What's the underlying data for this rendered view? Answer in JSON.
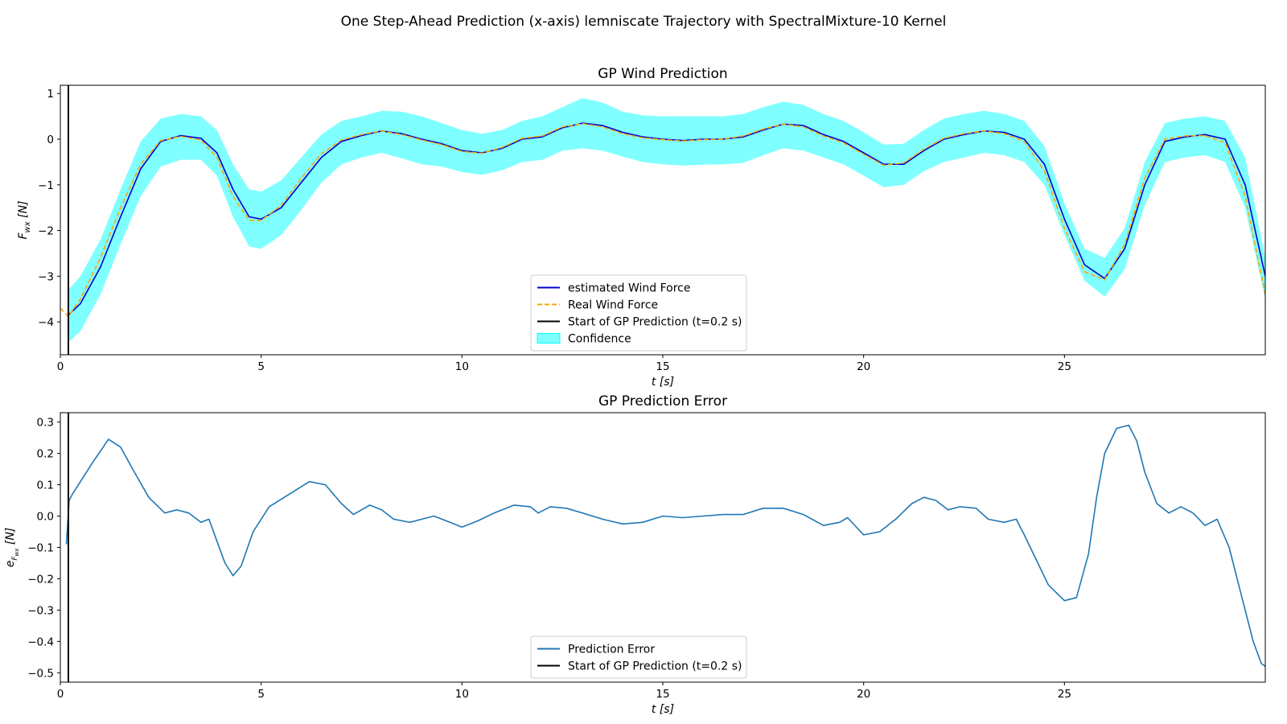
{
  "figure": {
    "suptitle": "One Step-Ahead Prediction (x-axis) lemniscate Trajectory with SpectralMixture-10 Kernel"
  },
  "chart_data": [
    {
      "type": "line",
      "title": "GP Wind Prediction",
      "xlabel": "t [s]",
      "ylabel": "F_wx [N]",
      "xlim": [
        0,
        30
      ],
      "ylim": [
        -4.72,
        1.18
      ],
      "xticks": [
        0,
        5,
        10,
        15,
        20,
        25
      ],
      "yticks": [
        1,
        0,
        -1,
        -2,
        -3,
        -4
      ],
      "grid": false,
      "legend_position": "lower center",
      "vline": {
        "x": 0.2,
        "label": "Start of GP Prediction (t=0.2 s)",
        "color": "#000000"
      },
      "series": [
        {
          "name": "estimated Wind Force",
          "style": "solid",
          "color": "#0000cc",
          "x": [
            0.2,
            0.5,
            1,
            1.5,
            2,
            2.5,
            3,
            3.5,
            3.9,
            4.3,
            4.7,
            5,
            5.5,
            6,
            6.5,
            7,
            7.5,
            8,
            8.5,
            9,
            9.5,
            10,
            10.5,
            11,
            11.5,
            12,
            12.5,
            13,
            13.5,
            14,
            14.5,
            15,
            15.5,
            16,
            16.5,
            17,
            17.5,
            18,
            18.5,
            19,
            19.5,
            20,
            20.5,
            21,
            21.5,
            22,
            22.5,
            23,
            23.5,
            24,
            24.5,
            25,
            25.5,
            26,
            26.5,
            27,
            27.5,
            28,
            28.5,
            29,
            29.5,
            30
          ],
          "y": [
            -3.85,
            -3.6,
            -2.8,
            -1.7,
            -0.65,
            -0.05,
            0.08,
            0.02,
            -0.3,
            -1.1,
            -1.7,
            -1.75,
            -1.5,
            -0.95,
            -0.4,
            -0.05,
            0.08,
            0.18,
            0.12,
            0.0,
            -0.1,
            -0.25,
            -0.3,
            -0.2,
            0.0,
            0.05,
            0.25,
            0.35,
            0.3,
            0.15,
            0.05,
            0.0,
            -0.03,
            0.0,
            0.0,
            0.05,
            0.2,
            0.33,
            0.3,
            0.1,
            -0.05,
            -0.3,
            -0.55,
            -0.55,
            -0.25,
            0.0,
            0.1,
            0.18,
            0.15,
            0.0,
            -0.55,
            -1.75,
            -2.75,
            -3.05,
            -2.4,
            -1.0,
            -0.05,
            0.05,
            0.1,
            0.0,
            -1.0,
            -3.0
          ]
        },
        {
          "name": "Real Wind Force",
          "style": "dashed",
          "color": "#ffa500",
          "x": [
            0,
            0.2,
            0.5,
            1,
            1.5,
            2,
            2.5,
            3,
            3.5,
            3.9,
            4.3,
            4.7,
            5,
            5.5,
            6,
            6.5,
            7,
            7.5,
            8,
            8.5,
            9,
            9.5,
            10,
            10.5,
            11,
            11.5,
            12,
            12.5,
            13,
            13.5,
            14,
            14.5,
            15,
            15.5,
            16,
            16.5,
            17,
            17.5,
            18,
            18.5,
            19,
            19.5,
            20,
            20.5,
            21,
            21.5,
            22,
            22.5,
            23,
            23.5,
            24,
            24.5,
            25,
            25.5,
            26,
            26.5,
            27,
            27.5,
            28,
            28.5,
            29,
            29.5,
            30
          ],
          "y": [
            -3.7,
            -3.88,
            -3.5,
            -2.6,
            -1.5,
            -0.55,
            -0.03,
            0.06,
            -0.02,
            -0.4,
            -1.25,
            -1.78,
            -1.78,
            -1.45,
            -0.85,
            -0.32,
            -0.02,
            0.1,
            0.18,
            0.1,
            -0.02,
            -0.12,
            -0.27,
            -0.31,
            -0.18,
            0.02,
            0.07,
            0.27,
            0.34,
            0.27,
            0.12,
            0.03,
            -0.01,
            -0.04,
            -0.01,
            0.0,
            0.07,
            0.22,
            0.33,
            0.27,
            0.07,
            -0.08,
            -0.33,
            -0.57,
            -0.52,
            -0.22,
            0.02,
            0.12,
            0.18,
            0.12,
            -0.05,
            -0.7,
            -1.95,
            -2.9,
            -3.08,
            -2.3,
            -0.85,
            0.0,
            0.07,
            0.08,
            -0.08,
            -1.25,
            -3.4
          ]
        }
      ],
      "confidence": {
        "name": "Confidence",
        "color": "#00ffff",
        "x": [
          0.2,
          0.5,
          1,
          1.5,
          2,
          2.5,
          3,
          3.5,
          3.9,
          4.3,
          4.7,
          5,
          5.5,
          6,
          6.5,
          7,
          7.5,
          8,
          8.5,
          9,
          9.5,
          10,
          10.5,
          11,
          11.5,
          12,
          12.5,
          13,
          13.5,
          14,
          14.5,
          15,
          15.5,
          16,
          16.5,
          17,
          17.5,
          18,
          18.5,
          19,
          19.5,
          20,
          20.5,
          21,
          21.5,
          22,
          22.5,
          23,
          23.5,
          24,
          24.5,
          25,
          25.5,
          26,
          26.5,
          27,
          27.5,
          28,
          28.5,
          29,
          29.5,
          30
        ],
        "upper": [
          -3.3,
          -3.0,
          -2.2,
          -1.1,
          -0.05,
          0.45,
          0.55,
          0.5,
          0.2,
          -0.55,
          -1.1,
          -1.15,
          -0.9,
          -0.4,
          0.1,
          0.4,
          0.5,
          0.62,
          0.6,
          0.5,
          0.35,
          0.2,
          0.12,
          0.2,
          0.4,
          0.5,
          0.7,
          0.9,
          0.8,
          0.6,
          0.52,
          0.5,
          0.5,
          0.5,
          0.5,
          0.55,
          0.7,
          0.82,
          0.75,
          0.55,
          0.4,
          0.15,
          -0.12,
          -0.1,
          0.2,
          0.45,
          0.55,
          0.62,
          0.55,
          0.4,
          -0.15,
          -1.4,
          -2.4,
          -2.6,
          -1.95,
          -0.5,
          0.35,
          0.45,
          0.5,
          0.4,
          -0.4,
          -2.6
        ],
        "lower": [
          -4.45,
          -4.2,
          -3.4,
          -2.3,
          -1.25,
          -0.6,
          -0.45,
          -0.45,
          -0.8,
          -1.7,
          -2.35,
          -2.4,
          -2.1,
          -1.55,
          -0.95,
          -0.55,
          -0.4,
          -0.3,
          -0.42,
          -0.55,
          -0.6,
          -0.72,
          -0.78,
          -0.68,
          -0.5,
          -0.45,
          -0.25,
          -0.2,
          -0.25,
          -0.38,
          -0.5,
          -0.55,
          -0.58,
          -0.56,
          -0.55,
          -0.52,
          -0.35,
          -0.2,
          -0.25,
          -0.4,
          -0.55,
          -0.8,
          -1.05,
          -1.0,
          -0.7,
          -0.5,
          -0.4,
          -0.3,
          -0.35,
          -0.5,
          -1.0,
          -2.1,
          -3.1,
          -3.45,
          -2.85,
          -1.45,
          -0.5,
          -0.4,
          -0.35,
          -0.5,
          -1.5,
          -3.5
        ]
      }
    },
    {
      "type": "line",
      "title": "GP Prediction Error",
      "xlabel": "t [s]",
      "ylabel": "e_F_wx [N]",
      "xlim": [
        0,
        30
      ],
      "ylim": [
        -0.53,
        0.33
      ],
      "xticks": [
        0,
        5,
        10,
        15,
        20,
        25
      ],
      "yticks": [
        0.3,
        0.2,
        0.1,
        0.0,
        -0.1,
        -0.2,
        -0.3,
        -0.4,
        -0.5
      ],
      "grid": false,
      "legend_position": "lower center",
      "vline": {
        "x": 0.2,
        "label": "Start of GP Prediction (t=0.2 s)",
        "color": "#000000"
      },
      "series": [
        {
          "name": "Prediction Error",
          "style": "solid",
          "color": "#1f77b4",
          "x": [
            0.15,
            0.22,
            0.3,
            0.5,
            0.8,
            1.2,
            1.5,
            1.8,
            2.2,
            2.6,
            2.9,
            3.2,
            3.5,
            3.7,
            3.9,
            4.1,
            4.3,
            4.5,
            4.8,
            5.2,
            5.7,
            6.2,
            6.6,
            7.0,
            7.3,
            7.7,
            8.0,
            8.3,
            8.7,
            9.0,
            9.3,
            9.7,
            10.0,
            10.4,
            10.8,
            11.3,
            11.7,
            11.9,
            12.2,
            12.6,
            13.0,
            13.5,
            14.0,
            14.5,
            15.0,
            15.5,
            16.0,
            16.5,
            17.0,
            17.5,
            18.0,
            18.5,
            19.0,
            19.4,
            19.6,
            20.0,
            20.4,
            20.8,
            21.2,
            21.5,
            21.8,
            22.1,
            22.4,
            22.8,
            23.1,
            23.5,
            23.8,
            24.0,
            24.3,
            24.6,
            25.0,
            25.3,
            25.6,
            25.8,
            26.0,
            26.3,
            26.6,
            26.8,
            27.0,
            27.3,
            27.6,
            27.9,
            28.2,
            28.5,
            28.8,
            29.1,
            29.4,
            29.7,
            29.9,
            30.0
          ],
          "y": [
            -0.09,
            0.05,
            0.07,
            0.11,
            0.17,
            0.245,
            0.22,
            0.15,
            0.06,
            0.01,
            0.02,
            0.01,
            -0.02,
            -0.01,
            -0.08,
            -0.15,
            -0.19,
            -0.16,
            -0.05,
            0.03,
            0.07,
            0.11,
            0.1,
            0.04,
            0.005,
            0.035,
            0.02,
            -0.01,
            -0.02,
            -0.01,
            0.0,
            -0.02,
            -0.035,
            -0.015,
            0.01,
            0.035,
            0.03,
            0.01,
            0.03,
            0.025,
            0.01,
            -0.01,
            -0.025,
            -0.02,
            0.0,
            -0.005,
            0.0,
            0.005,
            0.005,
            0.025,
            0.025,
            0.005,
            -0.03,
            -0.02,
            -0.005,
            -0.06,
            -0.05,
            -0.01,
            0.04,
            0.06,
            0.05,
            0.02,
            0.03,
            0.025,
            -0.01,
            -0.02,
            -0.01,
            -0.06,
            -0.14,
            -0.22,
            -0.27,
            -0.26,
            -0.12,
            0.06,
            0.2,
            0.28,
            0.29,
            0.24,
            0.14,
            0.04,
            0.01,
            0.03,
            0.01,
            -0.03,
            -0.01,
            -0.1,
            -0.25,
            -0.4,
            -0.47,
            -0.48
          ]
        }
      ]
    }
  ]
}
